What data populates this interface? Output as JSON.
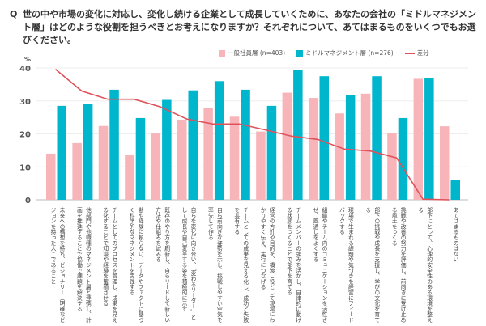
{
  "question": {
    "prefix": "Q",
    "text": "世の中や市場の変化に対応し、変化し続ける企業として成長していくために、あなたの会社の「ミドルマネジメント層」はどのような役割を担うべきとお考えになりますか？それぞれについて、あてはまるものをいくつでもお選びください。"
  },
  "colors": {
    "general": "#f7b4b9",
    "middle": "#00b6cc",
    "diff": "#e0525b",
    "grid": "#eeeeee"
  },
  "chart_data": {
    "type": "bar",
    "ylabel": "%",
    "ylim": [
      0,
      40
    ],
    "yticks": [
      "0",
      "10",
      "20",
      "30",
      "40"
    ],
    "grid": true,
    "legend_position": "top-right",
    "categories": [
      "未来への構想を持ち、ビジョナリー（明確なビジョンを持った人）であること",
      "他部門や他職種のマネジメント層と連携し、計画を推進することで協働で課題を解決する",
      "チームとしてのプロセスを管理し、成果を見える化することで知識や経験を蓄積させる",
      "勘や経験に頼らない、データやファクトに基づく科学的なマネジメントを実践する",
      "既存のやり方を刷新し、自らリードして新しい方法や仕組みを試みる",
      "自らを変化に向き合い、「変わるリーダー」として成長や自己変革する姿を積極的に示す",
      "自ら前向きな姿勢を示し、挑戦しやすい空気を率先して作る",
      "チームとしての成果を見える化し、成功と失敗を共有する",
      "経営の方針や目的を、橋渡し役として現場にわかりやすく伝え、実行につなげる",
      "チームメンバーの強みを活かし、自律的に動ける状態をつくることで部下を育てる",
      "組織やチーム内のコミュニケーションを活性させ、風通しをよくする",
      "現場で生まれる課題や気づきを経営にフィードバックする",
      "部下の挑戦や成長を支援し、学びの文化を育てる",
      "挑戦や改善の努力を評価し、前向きに受け止める風土をつくる",
      "部下にとって、心理的安全性のある環境を整える",
      "あてはまるものはない"
    ],
    "series": [
      {
        "name": "一般社員層 (n=403)",
        "type": "bar",
        "values": [
          14.0,
          17.2,
          22.4,
          13.7,
          20.1,
          24.3,
          27.9,
          25.2,
          20.7,
          32.5,
          30.9,
          26.2,
          32.2,
          20.3,
          36.7,
          22.3
        ]
      },
      {
        "name": "ミドルマネジメント層 (n=276)",
        "type": "bar",
        "values": [
          28.5,
          29.1,
          33.4,
          24.8,
          30.3,
          33.2,
          36.0,
          33.4,
          28.5,
          39.3,
          37.5,
          31.7,
          37.5,
          24.8,
          36.8,
          6.0
        ]
      },
      {
        "name": "差分",
        "type": "line",
        "values": [
          39.6,
          33.0,
          30.5,
          30.5,
          28.2,
          24.5,
          23.0,
          23.0,
          21.2,
          19.3,
          18.3,
          15.4,
          14.8,
          12.7,
          0.2,
          0.0
        ]
      }
    ]
  }
}
